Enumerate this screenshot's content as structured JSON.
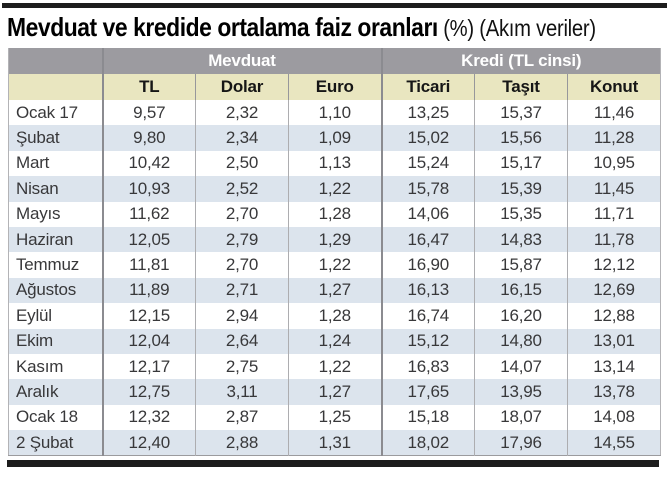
{
  "title": {
    "main": "Mevduat ve kredide ortalama faiz oranları",
    "suffix": " (%) (Akım veriler)"
  },
  "table": {
    "groups": [
      "Mevduat",
      "Kredi (TL cinsi)"
    ],
    "columns": [
      "TL",
      "Dolar",
      "Euro",
      "Ticari",
      "Taşıt",
      "Konut"
    ],
    "rows": [
      {
        "label": "Ocak 17",
        "values": [
          "9,57",
          "2,32",
          "1,10",
          "13,25",
          "15,37",
          "11,46"
        ]
      },
      {
        "label": "Şubat",
        "values": [
          "9,80",
          "2,34",
          "1,09",
          "15,02",
          "15,56",
          "11,28"
        ]
      },
      {
        "label": "Mart",
        "values": [
          "10,42",
          "2,50",
          "1,13",
          "15,24",
          "15,17",
          "10,95"
        ]
      },
      {
        "label": "Nisan",
        "values": [
          "10,93",
          "2,52",
          "1,22",
          "15,78",
          "15,39",
          "11,45"
        ]
      },
      {
        "label": "Mayıs",
        "values": [
          "11,62",
          "2,70",
          "1,28",
          "14,06",
          "15,35",
          "11,71"
        ]
      },
      {
        "label": "Haziran",
        "values": [
          "12,05",
          "2,79",
          "1,29",
          "16,47",
          "14,83",
          "11,78"
        ]
      },
      {
        "label": "Temmuz",
        "values": [
          "11,81",
          "2,70",
          "1,22",
          "16,90",
          "15,87",
          "12,12"
        ]
      },
      {
        "label": "Ağustos",
        "values": [
          "11,89",
          "2,71",
          "1,27",
          "16,13",
          "16,15",
          "12,69"
        ]
      },
      {
        "label": "Eylül",
        "values": [
          "12,15",
          "2,94",
          "1,28",
          "16,74",
          "16,20",
          "12,88"
        ]
      },
      {
        "label": "Ekim",
        "values": [
          "12,04",
          "2,64",
          "1,24",
          "15,12",
          "14,80",
          "13,01"
        ]
      },
      {
        "label": "Kasım",
        "values": [
          "12,17",
          "2,75",
          "1,22",
          "16,83",
          "14,07",
          "13,14"
        ]
      },
      {
        "label": "Aralık",
        "values": [
          "12,75",
          "3,11",
          "1,27",
          "17,65",
          "13,95",
          "13,78"
        ]
      },
      {
        "label": "Ocak 18",
        "values": [
          "12,32",
          "2,87",
          "1,25",
          "15,18",
          "18,07",
          "14,08"
        ]
      },
      {
        "label": "2 Şubat",
        "values": [
          "12,40",
          "2,88",
          "1,31",
          "18,02",
          "17,96",
          "14,55"
        ]
      }
    ]
  },
  "colors": {
    "group_header_bg": "#9c9ba0",
    "column_header_bg": "#e9e6c0",
    "alt_row_bg": "#dce4ed",
    "rule": "#1d1d1d",
    "text": "#38383a"
  },
  "chart_data": {
    "type": "table",
    "title": "Mevduat ve kredide ortalama faiz oranları (%) (Akım veriler)",
    "categories": [
      "Ocak 17",
      "Şubat",
      "Mart",
      "Nisan",
      "Mayıs",
      "Haziran",
      "Temmuz",
      "Ağustos",
      "Eylül",
      "Ekim",
      "Kasım",
      "Aralık",
      "Ocak 18",
      "2 Şubat"
    ],
    "column_groups": [
      {
        "name": "Mevduat",
        "columns": [
          "TL",
          "Dolar",
          "Euro"
        ]
      },
      {
        "name": "Kredi (TL cinsi)",
        "columns": [
          "Ticari",
          "Taşıt",
          "Konut"
        ]
      }
    ],
    "series": [
      {
        "name": "Mevduat TL",
        "values": [
          9.57,
          9.8,
          10.42,
          10.93,
          11.62,
          12.05,
          11.81,
          11.89,
          12.15,
          12.04,
          12.17,
          12.75,
          12.32,
          12.4
        ]
      },
      {
        "name": "Mevduat Dolar",
        "values": [
          2.32,
          2.34,
          2.5,
          2.52,
          2.7,
          2.79,
          2.7,
          2.71,
          2.94,
          2.64,
          2.75,
          3.11,
          2.87,
          2.88
        ]
      },
      {
        "name": "Mevduat Euro",
        "values": [
          1.1,
          1.09,
          1.13,
          1.22,
          1.28,
          1.29,
          1.22,
          1.27,
          1.28,
          1.24,
          1.22,
          1.27,
          1.25,
          1.31
        ]
      },
      {
        "name": "Kredi Ticari",
        "values": [
          13.25,
          15.02,
          15.24,
          15.78,
          14.06,
          16.47,
          16.9,
          16.13,
          16.74,
          15.12,
          16.83,
          17.65,
          15.18,
          18.02
        ]
      },
      {
        "name": "Kredi Taşıt",
        "values": [
          15.37,
          15.56,
          15.17,
          15.39,
          15.35,
          14.83,
          15.87,
          16.15,
          16.2,
          14.8,
          14.07,
          13.95,
          18.07,
          17.96
        ]
      },
      {
        "name": "Kredi Konut",
        "values": [
          11.46,
          11.28,
          10.95,
          11.45,
          11.71,
          11.78,
          12.12,
          12.69,
          12.88,
          13.01,
          13.14,
          13.78,
          14.08,
          14.55
        ]
      }
    ]
  }
}
